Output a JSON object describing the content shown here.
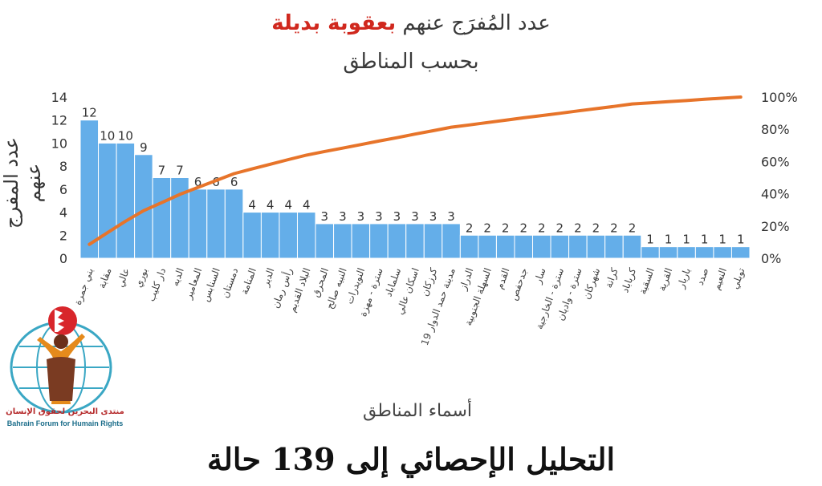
{
  "title": {
    "prefix": "عدد المُفرَج عنهم",
    "highlight": "بعقوبة بديلة",
    "line2": "بحسب المناطق"
  },
  "footer_text": "التحليل الإحصائي إلى 139 حالة",
  "logo": {
    "arabic": "منتدى البحرين لحقوق الإنسان",
    "english": "Bahrain Forum for Humain Rights"
  },
  "colors": {
    "bar": "#64aee9",
    "bar_edge": "#ffffff",
    "line": "#e7742a",
    "title_red": "#d0281e",
    "axis_text": "#333333"
  },
  "chart_data": {
    "type": "bar",
    "title": "عدد المُفرَج عنهم بعقوبة بديلة بحسب المناطق",
    "xlabel": "أسماء المناطق",
    "ylabel": "عدد المفرج عنهم",
    "ylim": [
      0,
      14
    ],
    "yticks": [
      0,
      2,
      4,
      6,
      8,
      10,
      12,
      14
    ],
    "y2lim": [
      0,
      100
    ],
    "y2ticks": [
      "0%",
      "20%",
      "40%",
      "60%",
      "80%",
      "100%"
    ],
    "grid": false,
    "categories": [
      "بني جمرة",
      "مقابة",
      "عالي",
      "بوري",
      "دار كليب",
      "الديه",
      "المعامير",
      "السنابس",
      "دمستان",
      "المنامة",
      "الدير",
      "رأس رمان",
      "البلاد القديم",
      "المحرق",
      "النبيه صالح",
      "النويدرات",
      "سترة - مهزة",
      "سلماباد",
      "اسكان عالي",
      "كرزكان",
      "مدينة حمد الدوار 19",
      "الدراز",
      "السهلة الجنوبية",
      "القدم",
      "جدحفص",
      "سار",
      "سترة - الخارجية",
      "سترة - واديان",
      "شهركان",
      "كرانة",
      "كرباباد",
      "السقية",
      "القرية",
      "باربار",
      "صدد",
      "النعيم",
      "توبلي"
    ],
    "series": [
      {
        "type": "bar",
        "values": [
          12,
          10,
          10,
          9,
          7,
          7,
          6,
          6,
          6,
          4,
          4,
          4,
          4,
          3,
          3,
          3,
          3,
          3,
          3,
          3,
          3,
          2,
          2,
          2,
          2,
          2,
          2,
          2,
          2,
          2,
          2,
          1,
          1,
          1,
          1,
          1,
          1
        ]
      },
      {
        "type": "line",
        "axis": "secondary",
        "values": [
          8.6,
          15.8,
          23.0,
          29.5,
          34.5,
          39.6,
          43.9,
          48.2,
          52.5,
          55.4,
          58.3,
          61.2,
          64.0,
          66.2,
          68.3,
          70.5,
          72.7,
          74.8,
          77.0,
          79.1,
          81.3,
          82.7,
          84.2,
          85.6,
          87.1,
          88.5,
          89.9,
          91.4,
          92.8,
          94.2,
          95.7,
          96.4,
          97.1,
          97.8,
          98.6,
          99.3,
          100
        ]
      }
    ]
  }
}
